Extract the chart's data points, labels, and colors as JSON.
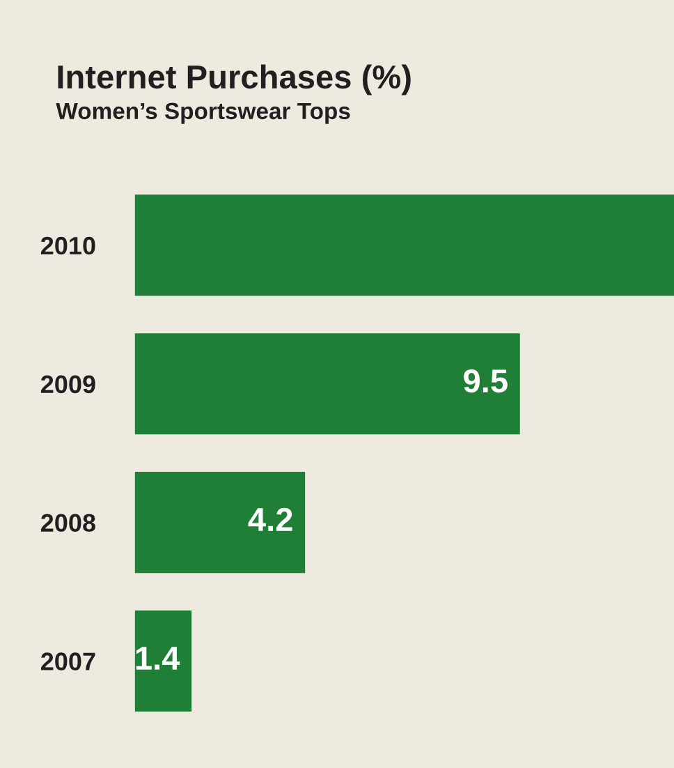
{
  "chart_data": {
    "type": "bar",
    "orientation": "horizontal",
    "title": "Internet Purchases (%)",
    "subtitle": "Women’s Sportswear Tops",
    "categories": [
      "2010",
      "2009",
      "2008",
      "2007"
    ],
    "values": [
      13.3,
      9.5,
      4.2,
      1.4
    ],
    "value_labels": [
      null,
      "9.5",
      "4.2",
      "1.4"
    ],
    "color": "#1f7f37",
    "tick_labels": "y",
    "grid": false,
    "legend": false
  }
}
